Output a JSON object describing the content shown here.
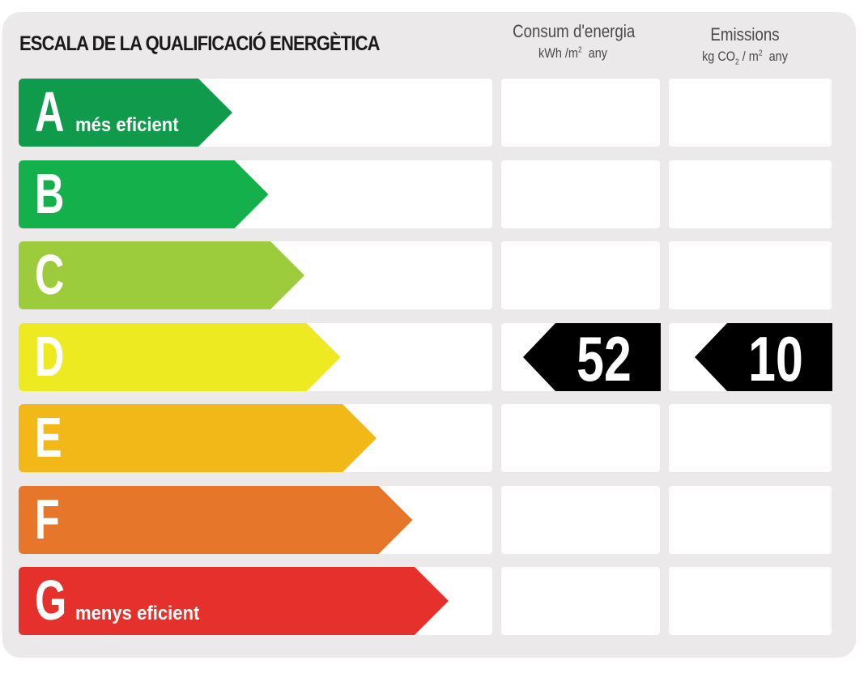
{
  "title": "ESCALA DE LA QUALIFICACIÓ ENERGÈTICA",
  "columns": {
    "consumption": {
      "title": "Consum d'energia",
      "unit_pre": "kWh /m",
      "unit_sup": "2",
      "unit_post": "any"
    },
    "emissions": {
      "title": "Emissions",
      "unit_pre": "kg CO",
      "unit_sub": "2",
      "unit_mid": " / m",
      "unit_sup": "2",
      "unit_post": "any"
    }
  },
  "bands": [
    {
      "letter": "A",
      "label": "més eficient",
      "color": "#109a4c"
    },
    {
      "letter": "B",
      "label": "",
      "color": "#13b04b"
    },
    {
      "letter": "C",
      "label": "",
      "color": "#9ccb3b"
    },
    {
      "letter": "D",
      "label": "",
      "color": "#eeea22"
    },
    {
      "letter": "E",
      "label": "",
      "color": "#f2b817"
    },
    {
      "letter": "F",
      "label": "",
      "color": "#e5762a"
    },
    {
      "letter": "G",
      "label": "menys eficient",
      "color": "#e6302b"
    }
  ],
  "rating": {
    "band": "D",
    "consumption_value": "52",
    "emissions_value": "10",
    "marker_color": "#000000"
  }
}
